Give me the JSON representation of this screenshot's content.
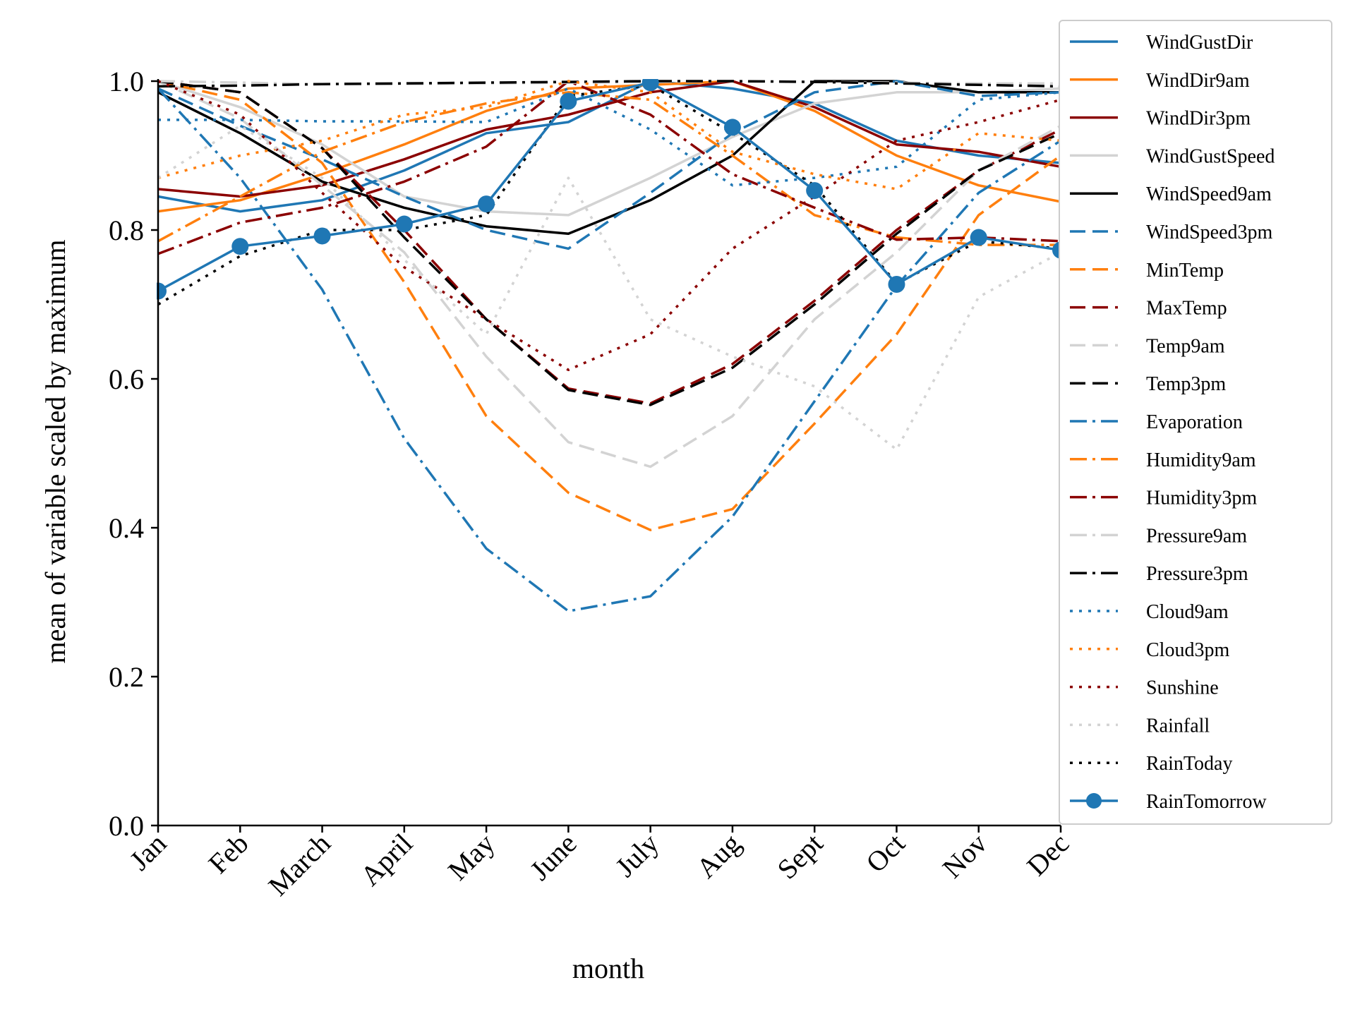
{
  "chart_data": {
    "type": "line",
    "title": "",
    "xlabel": "month",
    "ylabel": "mean of variable scaled by maximum",
    "ylim": [
      0.0,
      1.0
    ],
    "yticks": [
      "0.0",
      "0.2",
      "0.4",
      "0.6",
      "0.8",
      "1.0"
    ],
    "categories": [
      "Jan",
      "Feb",
      "March",
      "April",
      "May",
      "June",
      "July",
      "Aug",
      "Sept",
      "Oct",
      "Nov",
      "Dec"
    ],
    "grid": false,
    "legend_position": "right, outside plot area (upper right)",
    "series": [
      {
        "name": "WindGustDir",
        "color": "#1f77b4",
        "dash": "solid",
        "marker": false,
        "values": [
          0.845,
          0.825,
          0.84,
          0.88,
          0.93,
          0.945,
          1.0,
          0.99,
          0.97,
          0.92,
          0.9,
          0.89
        ]
      },
      {
        "name": "WindDir9am",
        "color": "#ff7f0e",
        "dash": "solid",
        "marker": false,
        "values": [
          0.825,
          0.84,
          0.875,
          0.915,
          0.96,
          0.99,
          0.995,
          1.0,
          0.96,
          0.9,
          0.86,
          0.838
        ]
      },
      {
        "name": "WindDir3pm",
        "color": "#8b0000",
        "dash": "solid",
        "marker": false,
        "values": [
          0.855,
          0.845,
          0.86,
          0.895,
          0.935,
          0.955,
          0.985,
          1.0,
          0.965,
          0.915,
          0.905,
          0.885
        ]
      },
      {
        "name": "WindGustSpeed",
        "color": "#d3d3d3",
        "dash": "solid",
        "marker": false,
        "values": [
          1.0,
          0.965,
          0.915,
          0.845,
          0.825,
          0.82,
          0.87,
          0.925,
          0.97,
          0.985,
          0.985,
          0.99
        ]
      },
      {
        "name": "WindSpeed9am",
        "color": "#000000",
        "dash": "solid",
        "marker": false,
        "values": [
          0.985,
          0.93,
          0.865,
          0.83,
          0.805,
          0.795,
          0.84,
          0.9,
          1.0,
          1.0,
          0.985,
          0.985
        ]
      },
      {
        "name": "WindSpeed3pm",
        "color": "#1f77b4",
        "dash": "dashed",
        "marker": false,
        "values": [
          0.99,
          0.94,
          0.895,
          0.845,
          0.8,
          0.775,
          0.85,
          0.93,
          0.985,
          1.0,
          0.98,
          0.985
        ]
      },
      {
        "name": "MinTemp",
        "color": "#ff7f0e",
        "dash": "dashed",
        "marker": false,
        "values": [
          1.0,
          0.975,
          0.89,
          0.73,
          0.55,
          0.447,
          0.397,
          0.425,
          0.54,
          0.66,
          0.82,
          0.9
        ]
      },
      {
        "name": "MaxTemp",
        "color": "#8b0000",
        "dash": "dashed",
        "marker": false,
        "values": [
          1.0,
          0.985,
          0.91,
          0.8,
          0.68,
          0.587,
          0.567,
          0.62,
          0.705,
          0.8,
          0.88,
          0.935
        ]
      },
      {
        "name": "Temp9am",
        "color": "#d3d3d3",
        "dash": "dashed",
        "marker": false,
        "values": [
          1.0,
          0.95,
          0.86,
          0.77,
          0.63,
          0.515,
          0.482,
          0.55,
          0.68,
          0.77,
          0.88,
          0.94
        ]
      },
      {
        "name": "Temp3pm",
        "color": "#000000",
        "dash": "dashed",
        "marker": false,
        "values": [
          1.0,
          0.985,
          0.91,
          0.79,
          0.68,
          0.585,
          0.565,
          0.615,
          0.7,
          0.795,
          0.88,
          0.93
        ]
      },
      {
        "name": "Evaporation",
        "color": "#1f77b4",
        "dash": "dashdot",
        "marker": false,
        "values": [
          0.99,
          0.87,
          0.72,
          0.52,
          0.372,
          0.288,
          0.308,
          0.415,
          0.57,
          0.725,
          0.85,
          0.92
        ]
      },
      {
        "name": "Humidity9am",
        "color": "#ff7f0e",
        "dash": "dashdot",
        "marker": false,
        "values": [
          0.785,
          0.845,
          0.905,
          0.945,
          0.97,
          0.985,
          0.975,
          0.9,
          0.82,
          0.79,
          0.78,
          0.78
        ]
      },
      {
        "name": "Humidity3pm",
        "color": "#8b0000",
        "dash": "dashdot",
        "marker": false,
        "values": [
          0.768,
          0.81,
          0.83,
          0.865,
          0.912,
          1.0,
          0.955,
          0.875,
          0.83,
          0.787,
          0.79,
          0.785
        ]
      },
      {
        "name": "Pressure9am",
        "color": "#d3d3d3",
        "dash": "dashdot",
        "marker": false,
        "values": [
          1.0,
          0.998,
          0.996,
          0.996,
          0.997,
          0.998,
          0.999,
          1.0,
          0.999,
          0.998,
          0.997,
          0.997
        ]
      },
      {
        "name": "Pressure3pm",
        "color": "#000000",
        "dash": "dashdot",
        "marker": false,
        "values": [
          0.993,
          0.994,
          0.996,
          0.997,
          0.998,
          0.999,
          1.0,
          1.0,
          0.999,
          0.997,
          0.995,
          0.993
        ]
      },
      {
        "name": "Cloud9am",
        "color": "#1f77b4",
        "dash": "dotted",
        "marker": false,
        "values": [
          0.948,
          0.948,
          0.946,
          0.946,
          0.945,
          0.99,
          0.935,
          0.86,
          0.87,
          0.885,
          0.975,
          0.985
        ]
      },
      {
        "name": "Cloud3pm",
        "color": "#ff7f0e",
        "dash": "dotted",
        "marker": false,
        "values": [
          0.87,
          0.9,
          0.92,
          0.955,
          0.965,
          1.0,
          0.985,
          0.905,
          0.875,
          0.855,
          0.93,
          0.92
        ]
      },
      {
        "name": "Sunshine",
        "color": "#8b0000",
        "dash": "dotted",
        "marker": false,
        "values": [
          1.0,
          0.955,
          0.85,
          0.75,
          0.68,
          0.612,
          0.66,
          0.775,
          0.845,
          0.92,
          0.945,
          0.975
        ]
      },
      {
        "name": "Rainfall",
        "color": "#d3d3d3",
        "dash": "dotted",
        "marker": false,
        "values": [
          0.87,
          0.94,
          0.87,
          0.76,
          0.66,
          0.87,
          0.68,
          0.63,
          0.59,
          0.505,
          0.71,
          0.77
        ]
      },
      {
        "name": "RainToday",
        "color": "#000000",
        "dash": "dotted",
        "marker": false,
        "values": [
          0.7,
          0.765,
          0.8,
          0.8,
          0.82,
          0.98,
          0.995,
          0.93,
          0.86,
          0.728,
          0.785,
          0.775
        ]
      },
      {
        "name": "RainTomorrow",
        "color": "#1f77b4",
        "dash": "solid",
        "marker": true,
        "values": [
          0.718,
          0.778,
          0.792,
          0.808,
          0.835,
          0.973,
          0.998,
          0.938,
          0.853,
          0.727,
          0.79,
          0.773
        ]
      }
    ]
  }
}
